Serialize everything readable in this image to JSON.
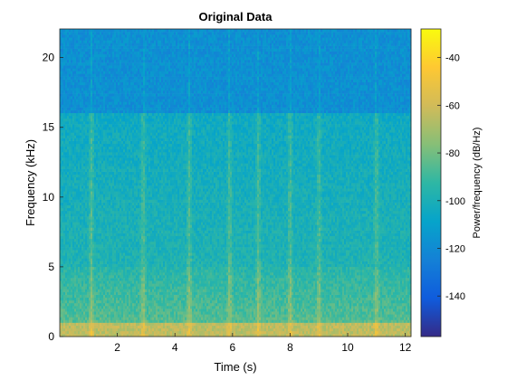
{
  "chart_data": {
    "type": "heatmap",
    "title": "Original Data",
    "xlabel": "Time (s)",
    "ylabel": "Frequency (kHz)",
    "xlim": [
      0,
      12.2
    ],
    "ylim": [
      0,
      22.05
    ],
    "x_ticks": [
      2,
      4,
      6,
      8,
      10,
      12
    ],
    "y_ticks": [
      0,
      5,
      10,
      15,
      20
    ],
    "colorbar": {
      "label": "Power/frequency (dB/Hz)",
      "range": [
        -157,
        -28
      ],
      "ticks": [
        -40,
        -60,
        -80,
        -100,
        -120,
        -140
      ],
      "colormap": "parula"
    },
    "regions": [
      {
        "freq_khz": [
          16,
          22.05
        ],
        "power_db": -118
      },
      {
        "freq_khz": [
          5,
          16
        ],
        "power_db": -98
      },
      {
        "freq_khz": [
          1,
          5
        ],
        "power_db": -85
      },
      {
        "freq_khz": [
          0,
          1
        ],
        "power_db": -65
      }
    ],
    "transient_times_s": [
      1.1,
      2.9,
      4.5,
      5.9,
      6.9,
      8.0,
      9.0,
      11.0
    ],
    "grid": false
  },
  "colors": {
    "background": "#ffffff",
    "axis": "#262626"
  }
}
